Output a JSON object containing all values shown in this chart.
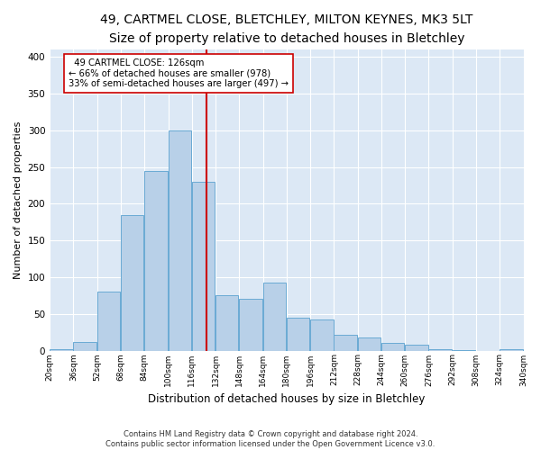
{
  "title1": "49, CARTMEL CLOSE, BLETCHLEY, MILTON KEYNES, MK3 5LT",
  "title2": "Size of property relative to detached houses in Bletchley",
  "xlabel": "Distribution of detached houses by size in Bletchley",
  "ylabel": "Number of detached properties",
  "footer": "Contains HM Land Registry data © Crown copyright and database right 2024.\nContains public sector information licensed under the Open Government Licence v3.0.",
  "bins": [
    20,
    36,
    52,
    68,
    84,
    100,
    116,
    132,
    148,
    164,
    180,
    196,
    212,
    228,
    244,
    260,
    276,
    292,
    308,
    324,
    340
  ],
  "bar_heights": [
    2,
    12,
    80,
    185,
    245,
    300,
    230,
    75,
    70,
    93,
    45,
    42,
    22,
    18,
    10,
    8,
    2,
    1,
    0,
    2
  ],
  "bar_color": "#b8d0e8",
  "bar_edge_color": "#6aaad4",
  "vline_x": 126,
  "vline_color": "#cc0000",
  "annotation_text": "  49 CARTMEL CLOSE: 126sqm\n← 66% of detached houses are smaller (978)\n33% of semi-detached houses are larger (497) →",
  "annotation_box_color": "#ffffff",
  "annotation_box_edge": "#cc0000",
  "ylim": [
    0,
    410
  ],
  "yticks": [
    0,
    50,
    100,
    150,
    200,
    250,
    300,
    350,
    400
  ],
  "bg_color": "#dce8f5",
  "title1_fontsize": 10,
  "title2_fontsize": 9,
  "xlabel_fontsize": 8.5,
  "ylabel_fontsize": 8,
  "figwidth": 6.0,
  "figheight": 5.0,
  "dpi": 100
}
